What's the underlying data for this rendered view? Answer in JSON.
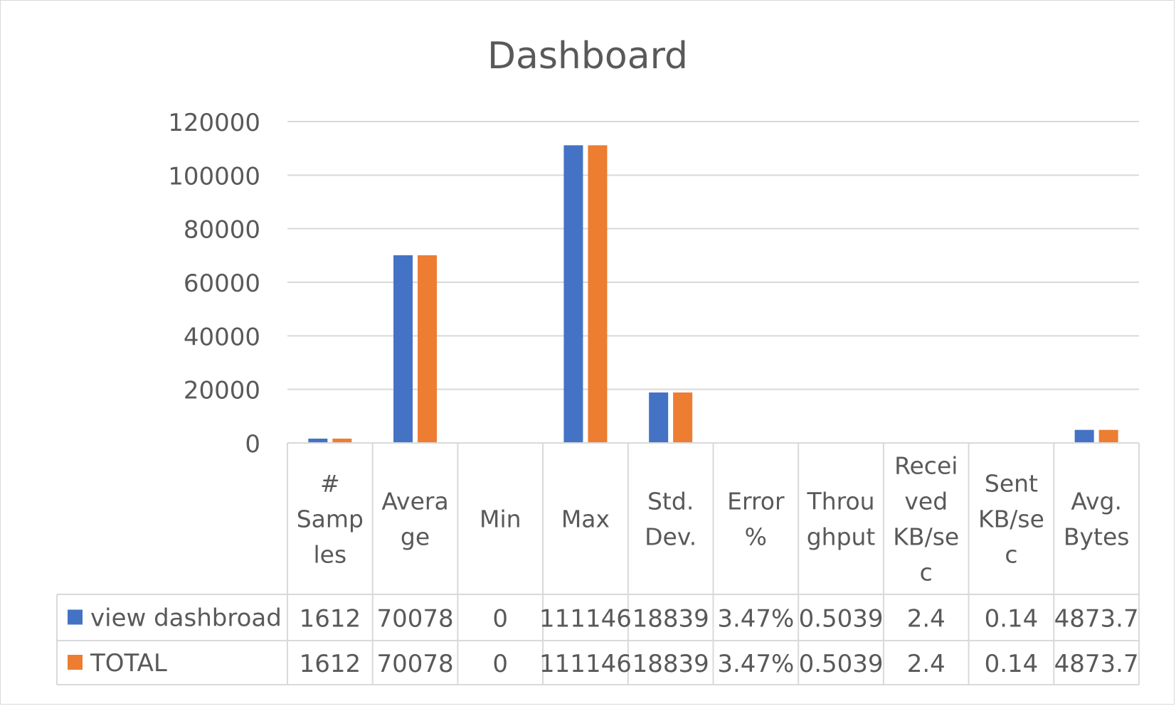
{
  "chart_data": {
    "type": "bar",
    "title": "Dashboard",
    "categories": [
      [
        "#",
        "Samp",
        "les"
      ],
      [
        "Avera",
        "ge"
      ],
      [
        "Min"
      ],
      [
        "Max"
      ],
      [
        "Std.",
        "Dev."
      ],
      [
        "Error",
        "%"
      ],
      [
        "Throu",
        "ghput"
      ],
      [
        "Recei",
        "ved",
        "KB/se",
        "c"
      ],
      [
        "Sent",
        "KB/se",
        "c"
      ],
      [
        "Avg.",
        "Bytes"
      ]
    ],
    "series": [
      {
        "name": "view dashbroad",
        "color": "#4472C4",
        "values": [
          1612,
          70078,
          0,
          111146,
          18839,
          3.47,
          0.5039,
          2.4,
          0.14,
          4873.7
        ],
        "labels": [
          "1612",
          "70078",
          "0",
          "111146",
          "18839",
          "3.47%",
          "0.5039",
          "2.4",
          "0.14",
          "4873.7"
        ]
      },
      {
        "name": "TOTAL",
        "color": "#ED7D31",
        "values": [
          1612,
          70078,
          0,
          111146,
          18839,
          3.47,
          0.5039,
          2.4,
          0.14,
          4873.7
        ],
        "labels": [
          "1612",
          "70078",
          "0",
          "111146",
          "18839",
          "3.47%",
          "0.5039",
          "2.4",
          "0.14",
          "4873.7"
        ]
      }
    ],
    "ylim": [
      0,
      120000
    ],
    "yticks": [
      "120000",
      "100000",
      "80000",
      "60000",
      "40000",
      "20000",
      "0"
    ],
    "grid": true,
    "legend": "data-table"
  }
}
